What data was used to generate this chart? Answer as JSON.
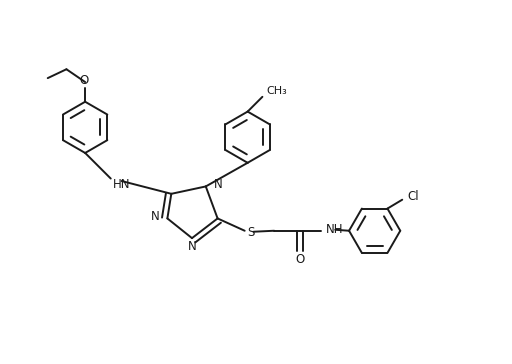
{
  "background_color": "#ffffff",
  "line_color": "#1a1a1a",
  "line_width": 1.4,
  "font_size": 8.5,
  "figsize": [
    5.12,
    3.64
  ],
  "dpi": 100,
  "xlim": [
    0,
    10.24
  ],
  "ylim": [
    0,
    7.28
  ]
}
